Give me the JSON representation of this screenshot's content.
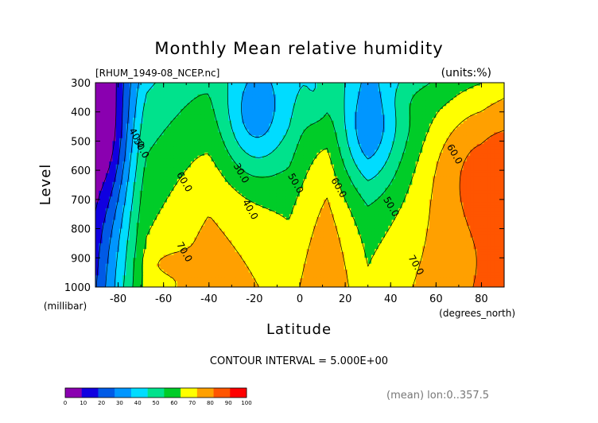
{
  "chart_data": {
    "type": "heatmap",
    "title": "Monthly Mean relative humidity",
    "file_label": "[RHUM_1949-08_NCEP.nc]",
    "units_label": "(units:%)",
    "xlabel": "Latitude",
    "xunit": "(degrees_north)",
    "ylabel": "Level",
    "yunit": "(millibar)",
    "xlim": [
      -90,
      90
    ],
    "ylim": [
      1000,
      300
    ],
    "x_ticks": [
      "-80",
      "-60",
      "-40",
      "-20",
      "0",
      "20",
      "40",
      "60",
      "80"
    ],
    "y_ticks": [
      "300",
      "400",
      "500",
      "600",
      "700",
      "800",
      "900",
      "1000"
    ],
    "contour_interval_text": "CONTOUR INTERVAL = 5.000E+00",
    "footer_text": "(mean) lon:0..357.5",
    "colorbar": {
      "levels": [
        0,
        10,
        20,
        30,
        40,
        50,
        60,
        70,
        80,
        90,
        100
      ],
      "tick_labels": [
        "0",
        "10",
        "20",
        "30",
        "40",
        "50",
        "60",
        "70",
        "80",
        "90",
        "100"
      ],
      "colors": [
        "#8a00b0",
        "#1000e0",
        "#005ae6",
        "#0096ff",
        "#00dcff",
        "#00e28c",
        "#00cc28",
        "#ffff00",
        "#ffa000",
        "#ff5500",
        "#ff0000"
      ]
    },
    "contour_labels": [
      {
        "text": "40.0",
        "x": -73,
        "y": 495
      },
      {
        "text": "50.0",
        "x": -71,
        "y": 530
      },
      {
        "text": "60.0",
        "x": -52,
        "y": 645
      },
      {
        "text": "70.0",
        "x": -52,
        "y": 885
      },
      {
        "text": "30.0",
        "x": -27,
        "y": 615
      },
      {
        "text": "40.0",
        "x": -23,
        "y": 740
      },
      {
        "text": "50.0",
        "x": -3,
        "y": 650
      },
      {
        "text": "60.0",
        "x": 16,
        "y": 665
      },
      {
        "text": "50.0",
        "x": 39,
        "y": 730
      },
      {
        "text": "70.0",
        "x": 50,
        "y": 930
      },
      {
        "text": "60.0",
        "x": 67,
        "y": 550
      }
    ]
  }
}
